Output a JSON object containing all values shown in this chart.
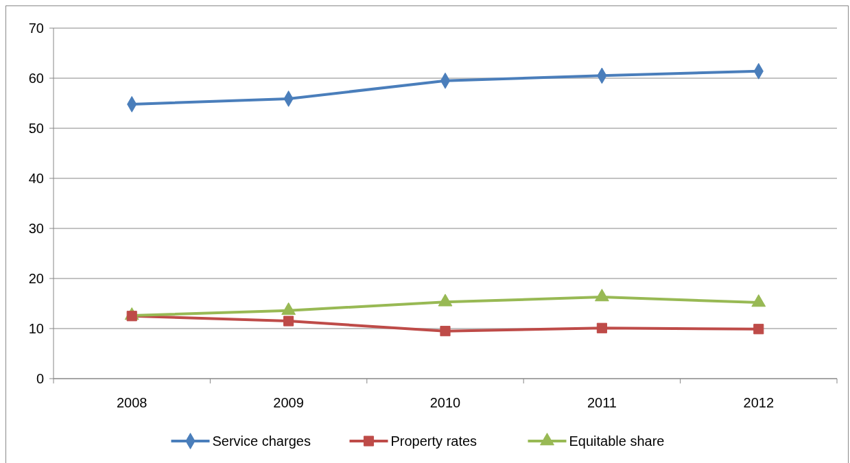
{
  "chart_data": {
    "type": "line",
    "categories": [
      "2008",
      "2009",
      "2010",
      "2011",
      "2012"
    ],
    "series": [
      {
        "name": "Service charges",
        "color": "#4a7ebb",
        "marker": "diamond",
        "values": [
          54.8,
          55.9,
          59.5,
          60.5,
          61.4
        ]
      },
      {
        "name": "Property rates",
        "color": "#be4b48",
        "marker": "square",
        "values": [
          12.5,
          11.5,
          9.5,
          10.1,
          9.9
        ]
      },
      {
        "name": "Equitable share",
        "color": "#98b954",
        "marker": "triangle",
        "values": [
          12.6,
          13.6,
          15.3,
          16.3,
          15.2
        ]
      }
    ],
    "ylim": [
      0,
      70
    ],
    "yticks": [
      0,
      10,
      20,
      30,
      40,
      50,
      60,
      70
    ],
    "grid": "y",
    "legend": "bottom"
  }
}
